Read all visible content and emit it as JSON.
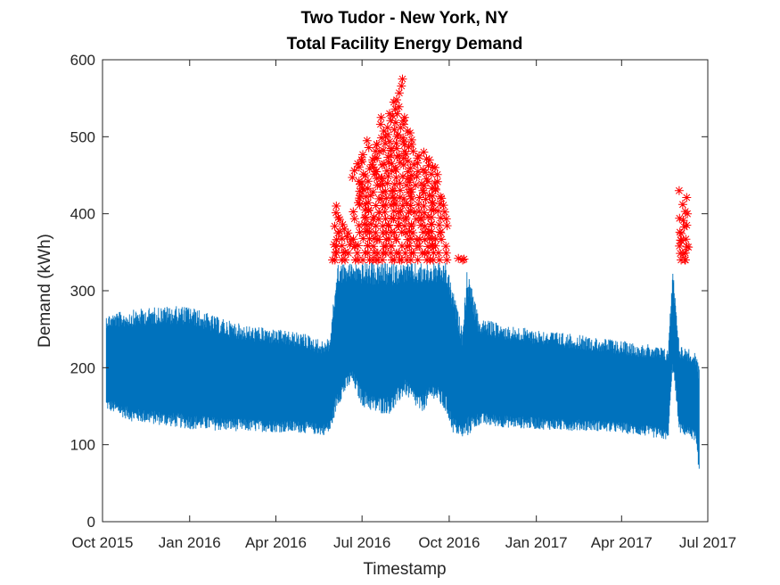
{
  "chart_data": {
    "type": "line",
    "title_lines": [
      "Two Tudor - New York, NY",
      "Total Facility Energy Demand"
    ],
    "xlabel": "Timestamp",
    "ylabel": "Demand (kWh)",
    "x_ticks": [
      "Oct 2015",
      "Jan 2016",
      "Apr 2016",
      "Jul 2016",
      "Oct 2016",
      "Jan 2017",
      "Apr 2017",
      "Jul 2017"
    ],
    "xlim": [
      "2015-10-01",
      "2017-07-01"
    ],
    "ylim": [
      0,
      600
    ],
    "y_ticks": [
      0,
      100,
      200,
      300,
      400,
      500,
      600
    ],
    "grid": false,
    "legend": "none",
    "threshold": 340,
    "colors": {
      "demand_line": "#0072BD",
      "peak_marker": "#FF0000"
    },
    "series": [
      {
        "style": "line",
        "color": "#0072BD",
        "x": [
          "2015-10-05",
          "2015-11-01",
          "2015-12-01",
          "2016-01-01",
          "2016-02-01",
          "2016-03-01",
          "2016-04-01",
          "2016-05-01",
          "2016-05-20",
          "2016-05-28",
          "2016-06-05",
          "2016-06-20",
          "2016-07-01",
          "2016-07-15",
          "2016-08-01",
          "2016-08-15",
          "2016-09-01",
          "2016-09-15",
          "2016-09-28",
          "2016-10-05",
          "2016-10-15",
          "2016-10-20",
          "2016-11-01",
          "2016-12-01",
          "2017-01-01",
          "2017-02-01",
          "2017-03-01",
          "2017-04-01",
          "2017-05-01",
          "2017-05-20",
          "2017-05-25",
          "2017-06-01",
          "2017-06-10",
          "2017-06-18",
          "2017-06-22"
        ],
        "low": [
          145,
          130,
          125,
          120,
          118,
          117,
          116,
          115,
          112,
          115,
          150,
          180,
          150,
          140,
          140,
          165,
          140,
          160,
          140,
          115,
          108,
          110,
          125,
          122,
          120,
          118,
          118,
          115,
          110,
          105,
          200,
          115,
          110,
          105,
          55
        ],
        "high": [
          270,
          275,
          280,
          280,
          265,
          255,
          250,
          245,
          235,
          240,
          336,
          336,
          336,
          336,
          336,
          336,
          336,
          336,
          336,
          300,
          250,
          330,
          265,
          255,
          250,
          245,
          240,
          235,
          230,
          225,
          330,
          230,
          225,
          220,
          200
        ]
      },
      {
        "style": "markers",
        "marker": "asterisk",
        "color": "#FF0000",
        "x": [
          "2016-06-01",
          "2016-06-05",
          "2016-06-10",
          "2016-06-15",
          "2016-06-20",
          "2016-06-25",
          "2016-07-01",
          "2016-07-05",
          "2016-07-10",
          "2016-07-15",
          "2016-07-20",
          "2016-07-25",
          "2016-08-01",
          "2016-08-05",
          "2016-08-10",
          "2016-08-15",
          "2016-08-20",
          "2016-08-25",
          "2016-09-01",
          "2016-09-05",
          "2016-09-10",
          "2016-09-15",
          "2016-09-20",
          "2016-09-25",
          "2016-10-13",
          "2017-06-05",
          "2017-06-06",
          "2017-06-07"
        ],
        "y": [
          360,
          410,
          395,
          380,
          375,
          465,
          470,
          495,
          470,
          490,
          525,
          500,
          530,
          545,
          575,
          525,
          505,
          490,
          475,
          480,
          470,
          460,
          440,
          420,
          342,
          430,
          400,
          365
        ]
      }
    ]
  }
}
